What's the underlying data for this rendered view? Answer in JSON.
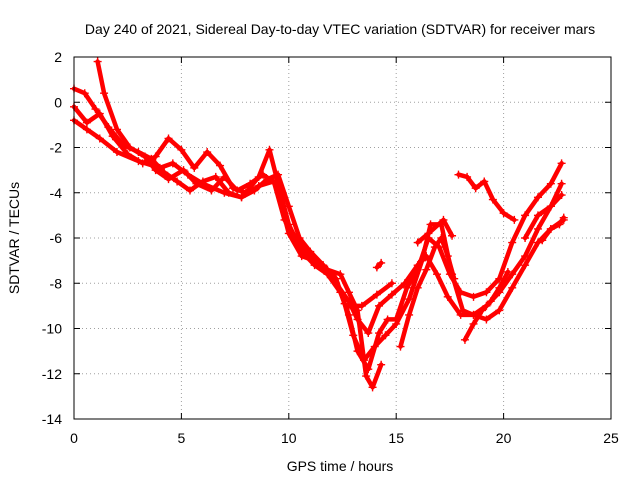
{
  "chart_data": {
    "type": "scatter",
    "title": "Day 240 of 2021, Sidereal Day-to-day VTEC variation (SDTVAR) for receiver mars",
    "xlabel": "GPS time / hours",
    "ylabel": "SDTVAR / TECUs",
    "xlim": [
      0,
      25
    ],
    "ylim": [
      -14,
      2
    ],
    "xticks": [
      0,
      5,
      10,
      15,
      20,
      25
    ],
    "yticks": [
      -14,
      -12,
      -10,
      -8,
      -6,
      -4,
      -2,
      0,
      2
    ],
    "grid": true,
    "marker": "+",
    "color": "#ff0000",
    "series": [
      {
        "points": [
          [
            0,
            -0.8
          ],
          [
            0.6,
            -1.2
          ],
          [
            1.2,
            -1.6
          ],
          [
            2,
            -2.2
          ],
          [
            3,
            -2.6
          ],
          [
            4,
            -2.9
          ],
          [
            4.6,
            -2.7
          ],
          [
            5.3,
            -3.2
          ],
          [
            6,
            -3.6
          ],
          [
            7,
            -4
          ],
          [
            7.8,
            -4.2
          ],
          [
            8.6,
            -3.7
          ],
          [
            9.3,
            -3.5
          ],
          [
            9.8,
            -5.2
          ],
          [
            10.6,
            -6.4
          ],
          [
            11.4,
            -7.2
          ],
          [
            12.2,
            -8
          ],
          [
            12.8,
            -8.8
          ],
          [
            13.2,
            -9.6
          ],
          [
            13.7,
            -10.2
          ],
          [
            14.2,
            -9
          ],
          [
            14.8,
            -8.5
          ],
          [
            15.4,
            -8
          ],
          [
            16,
            -7.2
          ],
          [
            16.4,
            -6.8
          ],
          [
            16.9,
            -7.6
          ],
          [
            17.4,
            -8.6
          ],
          [
            18,
            -9.4
          ],
          [
            18.6,
            -9.4
          ],
          [
            19.2,
            -9
          ],
          [
            19.8,
            -8.4
          ],
          [
            20.4,
            -7.6
          ],
          [
            21,
            -6.8
          ],
          [
            21.6,
            -5.6
          ],
          [
            22.2,
            -4.6
          ],
          [
            22.7,
            -4.1
          ]
        ]
      },
      {
        "points": [
          [
            0,
            -0.2
          ],
          [
            0.6,
            -0.9
          ],
          [
            1.2,
            -0.5
          ],
          [
            1.8,
            -1.5
          ],
          [
            2.5,
            -2.3
          ],
          [
            3.2,
            -2.7
          ],
          [
            3.8,
            -2.4
          ],
          [
            4.4,
            -1.6
          ],
          [
            5,
            -2.1
          ],
          [
            5.6,
            -2.9
          ],
          [
            6.2,
            -2.2
          ],
          [
            6.8,
            -2.8
          ],
          [
            7.4,
            -3.8
          ],
          [
            8,
            -4
          ],
          [
            8.6,
            -3.3
          ],
          [
            9.1,
            -2.1
          ],
          [
            9.5,
            -3.6
          ],
          [
            10,
            -5.4
          ],
          [
            10.6,
            -6.6
          ],
          [
            11.2,
            -7.2
          ],
          [
            11.8,
            -7.6
          ],
          [
            12.4,
            -8.4
          ],
          [
            12.8,
            -9.4
          ],
          [
            13.2,
            -11
          ],
          [
            13.7,
            -11.8
          ],
          [
            14.2,
            -10.2
          ],
          [
            14.6,
            -9.6
          ],
          [
            15,
            -9.6
          ],
          [
            15.5,
            -8.2
          ],
          [
            16,
            -7.4
          ],
          [
            16.5,
            -6
          ],
          [
            17,
            -6.4
          ],
          [
            17.5,
            -7.6
          ],
          [
            18,
            -8.4
          ],
          [
            18.6,
            -8.6
          ],
          [
            19.2,
            -8.4
          ],
          [
            19.8,
            -7.8
          ],
          [
            20.4,
            -6.2
          ],
          [
            21,
            -5
          ],
          [
            21.6,
            -4.2
          ],
          [
            22.2,
            -3.6
          ],
          [
            22.7,
            -2.7
          ]
        ]
      },
      {
        "points": [
          [
            0,
            0.6
          ],
          [
            0.5,
            0.4
          ],
          [
            1,
            -0.3
          ],
          [
            1.6,
            -1.1
          ],
          [
            2.3,
            -1.9
          ],
          [
            3,
            -2.2
          ],
          [
            3.6,
            -2.5
          ],
          [
            4.2,
            -3.1
          ],
          [
            4.8,
            -3.5
          ],
          [
            5.4,
            -3.9
          ],
          [
            6,
            -3.5
          ],
          [
            6.6,
            -3.3
          ],
          [
            7.2,
            -4
          ],
          [
            7.8,
            -4.2
          ],
          [
            8.4,
            -3.9
          ],
          [
            9,
            -3.4
          ],
          [
            9.5,
            -3.2
          ],
          [
            10,
            -4.6
          ],
          [
            10.5,
            -6
          ],
          [
            11,
            -6.6
          ],
          [
            11.6,
            -7.2
          ],
          [
            12.2,
            -7.8
          ],
          [
            12.6,
            -8.9
          ],
          [
            13,
            -10.3
          ],
          [
            13.5,
            -11.4
          ],
          [
            14,
            -10.8
          ],
          [
            14.5,
            -10.3
          ],
          [
            15,
            -9.8
          ],
          [
            15.6,
            -8.7
          ],
          [
            16.2,
            -7
          ],
          [
            16.6,
            -5.4
          ],
          [
            17.1,
            -5.4
          ],
          [
            17.6,
            -7.6
          ],
          [
            18.1,
            -9.2
          ],
          [
            18.6,
            -9.4
          ],
          [
            19.2,
            -9.6
          ],
          [
            19.8,
            -9.2
          ],
          [
            20.4,
            -8.2
          ],
          [
            21,
            -7.2
          ],
          [
            21.6,
            -6.2
          ],
          [
            22.2,
            -5.6
          ],
          [
            22.8,
            -5.2
          ]
        ]
      },
      {
        "points": [
          [
            1.1,
            1.8
          ],
          [
            1.4,
            0.4
          ],
          [
            2,
            -1.2
          ],
          [
            2.6,
            -2
          ],
          [
            3.3,
            -2.4
          ],
          [
            3.8,
            -3
          ],
          [
            4.4,
            -3.4
          ],
          [
            5.1,
            -3
          ],
          [
            5.7,
            -3.6
          ],
          [
            6.4,
            -3.9
          ],
          [
            7,
            -3.3
          ],
          [
            7.6,
            -3.9
          ],
          [
            8.2,
            -3.6
          ],
          [
            8.8,
            -3.2
          ],
          [
            9.4,
            -3.6
          ],
          [
            10,
            -5.8
          ],
          [
            10.6,
            -6.8
          ],
          [
            11.2,
            -7
          ],
          [
            11.8,
            -7.4
          ],
          [
            12.4,
            -7.6
          ],
          [
            12.8,
            -8.4
          ],
          [
            13.2,
            -9.2
          ],
          [
            13.6,
            -12.1
          ],
          [
            13.9,
            -12.6
          ],
          [
            14.3,
            -11.6
          ]
        ]
      },
      {
        "points": [
          [
            12.8,
            -9
          ],
          [
            13.4,
            -9
          ],
          [
            14.1,
            -8.5
          ],
          [
            14.8,
            -8
          ]
        ]
      },
      {
        "points": [
          [
            14.1,
            -7.3
          ],
          [
            14.3,
            -7.1
          ]
        ]
      },
      {
        "points": [
          [
            15.2,
            -10.8
          ],
          [
            15.6,
            -9.4
          ],
          [
            16,
            -8.2
          ],
          [
            16.4,
            -7.4
          ],
          [
            16.8,
            -6.4
          ],
          [
            17.1,
            -6
          ],
          [
            17.4,
            -6.8
          ],
          [
            17.7,
            -7.8
          ]
        ]
      },
      {
        "points": [
          [
            16,
            -6.2
          ],
          [
            16.5,
            -5.8
          ],
          [
            17.2,
            -5.2
          ],
          [
            17.6,
            -5.9
          ]
        ]
      },
      {
        "points": [
          [
            17.9,
            -3.2
          ],
          [
            18.3,
            -3.3
          ],
          [
            18.7,
            -3.8
          ],
          [
            19.1,
            -3.5
          ],
          [
            19.5,
            -4.3
          ],
          [
            20,
            -4.9
          ],
          [
            20.5,
            -5.2
          ]
        ]
      },
      {
        "points": [
          [
            18.2,
            -10.5
          ],
          [
            18.6,
            -9.8
          ],
          [
            19,
            -9.2
          ],
          [
            19.4,
            -8.8
          ],
          [
            19.8,
            -8.2
          ],
          [
            20.2,
            -7.5
          ]
        ]
      },
      {
        "points": [
          [
            21,
            -6
          ],
          [
            21.6,
            -5
          ],
          [
            22.2,
            -4.6
          ],
          [
            22.7,
            -3.6
          ]
        ]
      },
      {
        "points": [
          [
            21.8,
            -6.1
          ],
          [
            22.2,
            -5.6
          ],
          [
            22.6,
            -5.4
          ],
          [
            22.8,
            -5.1
          ]
        ]
      }
    ]
  }
}
